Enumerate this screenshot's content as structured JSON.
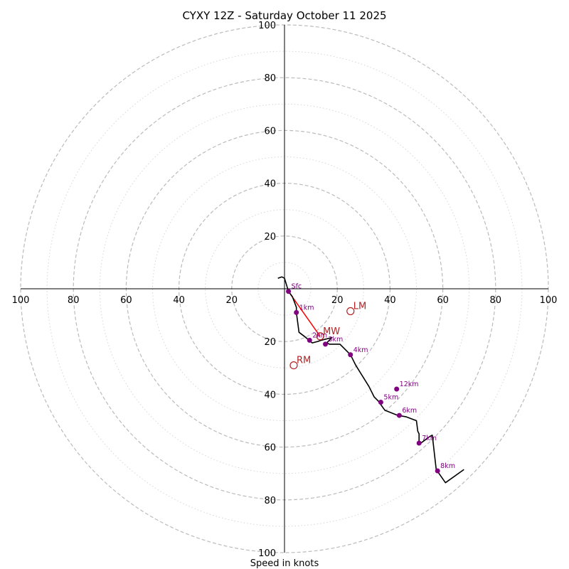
{
  "chart_data": {
    "type": "hodograph",
    "title": "CYXY 12Z - Saturday October 11 2025",
    "xlabel": "Speed in knots",
    "axis_range": [
      -100,
      100
    ],
    "ring_major": [
      20,
      40,
      60,
      80,
      100
    ],
    "ring_minor": [
      10,
      30,
      50,
      70,
      90
    ],
    "tick_labels": {
      "left": [
        "100",
        "80",
        "60",
        "40",
        "20"
      ],
      "right": [
        "20",
        "40",
        "60",
        "80",
        "100"
      ],
      "top": [
        "20",
        "40",
        "60",
        "80",
        "100"
      ],
      "bottom": [
        "20",
        "40",
        "60",
        "80",
        "100"
      ]
    },
    "tick_values": [
      20,
      40,
      60,
      80,
      100
    ],
    "trace": [
      [
        -2.5,
        4.0
      ],
      [
        -1.0,
        4.5
      ],
      [
        0,
        4.0
      ],
      [
        1.5,
        -1.0
      ],
      [
        3,
        -3
      ],
      [
        4.5,
        -7
      ],
      [
        4.5,
        -9
      ],
      [
        5.5,
        -16.5
      ],
      [
        7.5,
        -18
      ],
      [
        10.5,
        -20.5
      ],
      [
        12.5,
        -20
      ],
      [
        14,
        -19.5
      ],
      [
        18,
        -18.5
      ],
      [
        16,
        -20.5
      ],
      [
        17,
        -21
      ],
      [
        21,
        -21
      ],
      [
        22,
        -22
      ],
      [
        25,
        -25
      ],
      [
        27,
        -29
      ],
      [
        32,
        -37
      ],
      [
        34,
        -41
      ],
      [
        35.5,
        -42.5
      ],
      [
        38,
        -46
      ],
      [
        43,
        -48
      ],
      [
        46,
        -48.5
      ],
      [
        50,
        -50
      ],
      [
        50.5,
        -54
      ],
      [
        51,
        -55
      ],
      [
        51,
        -59
      ],
      [
        55,
        -56
      ],
      [
        56,
        -55.5
      ],
      [
        57.5,
        -68.5
      ],
      [
        61,
        -73.5
      ],
      [
        68,
        -68.5
      ]
    ],
    "heights": [
      {
        "label": "Sfc",
        "u": 1.5,
        "v": -1.0
      },
      {
        "label": "1km",
        "u": 4.5,
        "v": -9.0
      },
      {
        "label": "2km",
        "u": 9.5,
        "v": -19.5
      },
      {
        "label": "3km",
        "u": 15.5,
        "v": -21.0
      },
      {
        "label": "4km",
        "u": 25.0,
        "v": -25.0
      },
      {
        "label": "5km",
        "u": 36.5,
        "v": -43.0
      },
      {
        "label": "6km",
        "u": 43.5,
        "v": -48.0
      },
      {
        "label": "7km",
        "u": 51.0,
        "v": -58.5
      },
      {
        "label": "8km",
        "u": 58.0,
        "v": -69.0
      },
      {
        "label": "12km",
        "u": 42.5,
        "v": -38.0
      }
    ],
    "storm_motion": [
      {
        "label": "LM",
        "u": 25.0,
        "v": -8.5
      },
      {
        "label": "MW",
        "u": 13.5,
        "v": -18.0
      },
      {
        "label": "RM",
        "u": 3.5,
        "v": -29.0
      }
    ],
    "red_segment": [
      [
        1.5,
        -1.0
      ],
      [
        13.5,
        -18.0
      ]
    ],
    "colors": {
      "trace": "#000000",
      "height_marker": "#800080",
      "storm_motion": "#b22222",
      "red_segment": "#ff0000",
      "grid": "#bbbbbb"
    }
  }
}
